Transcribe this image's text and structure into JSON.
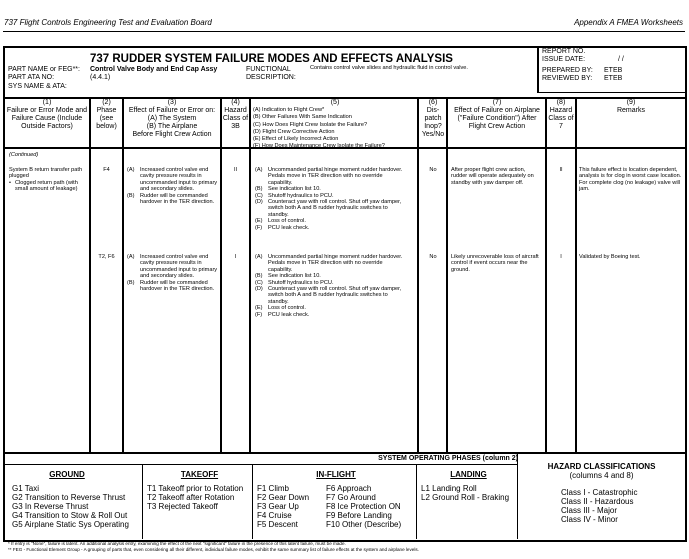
{
  "page_header": {
    "left": "737 Flight Controls Engineering Test and Evaluation Board",
    "right": "Appendix A   FMEA Worksheets"
  },
  "form": {
    "title": "737 RUDDER SYSTEM FAILURE MODES AND EFFECTS ANALYSIS",
    "part_name_label": "PART NAME or FEG**:",
    "part_name": "Control Valve Body and End Cap Assy",
    "part_ata_label": "PART ATA NO:",
    "part_ata": "(4.4.1)",
    "sys_name_label": "SYS NAME & ATA:",
    "functional_label": "FUNCTIONAL",
    "description_label": "DESCRIPTION:",
    "functional_description": "Contains control valve slides and hydraulic fluid in control valve.",
    "report_no_label": "REPORT NO.",
    "issue_date_label": "ISSUE DATE:",
    "issue_date": "/   /",
    "prepared_by_label": "PREPARED BY:",
    "prepared_by": "ETEB",
    "reviewed_by_label": "REVIEWED BY:",
    "reviewed_by": "ETEB"
  },
  "columns": [
    {
      "num": "(1)",
      "label": "Failure or Error Mode and Failure Cause (Include Outside Factors)"
    },
    {
      "num": "(2)",
      "label": "Phase (see below)"
    },
    {
      "num": "(3)",
      "label": "Effect of Failure or Error on:",
      "sub": [
        "(A)  The System",
        "(B)  The Airplane",
        "Before Flight Crew Action"
      ]
    },
    {
      "num": "(4)",
      "label": "Hazard Class of 3B"
    },
    {
      "num": "(5)",
      "items": [
        "(A)  Indication to Flight Crew*",
        "(B)  Other Failures With Same Indication",
        "(C)  How Does Flight Crew Isolate the Failure?",
        "(D)  Flight Crew Corrective Action",
        "(E)  Effect of Likely Incorrect Action",
        "(F)  How Does Maintenance Crew Isolate the Failure?"
      ]
    },
    {
      "num": "(6)",
      "label": "Dis-patch Inop? Yes/No"
    },
    {
      "num": "(7)",
      "label": "Effect of Failure on Airplane (\"Failure Condition\") After Flight Crew Action"
    },
    {
      "num": "(8)",
      "label": "Hazard Class of 7"
    },
    {
      "num": "(9)",
      "label": "Remarks"
    }
  ],
  "continued": "(Continued)",
  "rows": [
    {
      "failure_mode": "System B return transfer path plugged",
      "failure_bullet": "Clogged return path (with small amount of leakage)",
      "phase": "F4",
      "effect": [
        {
          "k": "(A)",
          "v": "Increased control valve end cavity pressure results in uncommanded input to primary and secondary slides."
        },
        {
          "k": "(B)",
          "v": "Rudder will be commanded hardover in the TER direction."
        }
      ],
      "hazard3b": "II",
      "indication": [
        {
          "k": "(A)",
          "v": "Uncommanded partial hinge moment rudder hardover. Pedals move in TER direction with no override capability."
        },
        {
          "k": "(B)",
          "v": "See indication list 10."
        },
        {
          "k": "(C)",
          "v": "Shutoff hydraulics to PCU."
        },
        {
          "k": "(D)",
          "v": "Counteract yaw with roll control.  Shut off yaw damper, switch both A and B rudder hydraulic switches to standby."
        },
        {
          "k": "(E)",
          "v": "Loss of control."
        },
        {
          "k": "(F)",
          "v": "PCU leak check."
        }
      ],
      "dispatch": "No",
      "effect_after": "After proper flight crew action, rudder will operate adequately on standby with yaw damper off.",
      "hazard7": "II",
      "remarks": "This failure effect is location dependent, analysis is for clog in worst case location. For complete clog (no leakage) valve will jam."
    },
    {
      "phase": "T2, F6",
      "effect": [
        {
          "k": "(A)",
          "v": "Increased control valve end cavity pressure results in uncommanded input to primary and secondary slides."
        },
        {
          "k": "(B)",
          "v": "Rudder will be commanded hardover in the TER direction."
        }
      ],
      "hazard3b": "I",
      "indication": [
        {
          "k": "(A)",
          "v": "Uncommanded partial hinge moment rudder hardover. Pedals move in TER direction with no override capability."
        },
        {
          "k": "(B)",
          "v": "See indication list 10."
        },
        {
          "k": "(C)",
          "v": "Shutoff hydraulics to PCU."
        },
        {
          "k": "(D)",
          "v": "Counteract yaw with roll control.  Shut off yaw damper, switch both A and B rudder hydraulic switches to standby."
        },
        {
          "k": "(E)",
          "v": "Loss of control."
        },
        {
          "k": "(F)",
          "v": "PCU leak check."
        }
      ],
      "dispatch": "No",
      "effect_after": "Likely unrecoverable loss of aircraft control if event occurs near the ground.",
      "hazard7": "I",
      "remarks": "Validated by Boeing test."
    }
  ],
  "phases": {
    "title": "SYSTEM OPERATING PHASES (column 2)",
    "ground": {
      "title": "GROUND",
      "items": [
        "G1  Taxi",
        "G2  Transition to Reverse Thrust",
        "G3   In Reverse Thrust",
        "G4  Transition to Stow & Roll Out",
        "G5  Airplane Static Sys Operating"
      ]
    },
    "takeoff": {
      "title": "TAKEOFF",
      "items": [
        "T1  Takeoff prior to Rotation",
        "T2  Takeoff after Rotation",
        "T3    Rejected Takeoff"
      ]
    },
    "inflight": {
      "title": "IN-FLIGHT",
      "left": [
        "F1  Climb",
        "F2  Gear Down",
        "F3  Gear Up",
        "F4  Cruise",
        "F5  Descent"
      ],
      "right": [
        "F6    Approach",
        "F7    Go Around",
        "F8    Ice Protection ON",
        "F9    Before Landing",
        "F10 Other (Describe)"
      ]
    },
    "landing": {
      "title": "LANDING",
      "items": [
        "L1 Landing Roll",
        "L2 Ground Roll - Braking"
      ]
    }
  },
  "hazard_classes": {
    "title": "HAZARD CLASSIFICATIONS",
    "subtitle": "(columns 4 and 8)",
    "items": [
      "Class I   - Catastrophic",
      "Class II  -  Hazardous",
      "Class III -  Major",
      "Class IV -  Minor"
    ]
  },
  "footnotes": [
    "*  If entry is \"None\", failure is latent.  An additional analysis entry, examining the effect of the next \"significant\" failure in the presence of this latent failure, must be made.",
    "** FEG - Functional Element Group - A grouping of parts that, even considering all their different, individual failure modes, exhibit the same summary list of failure effects at the system and airplane levels."
  ]
}
